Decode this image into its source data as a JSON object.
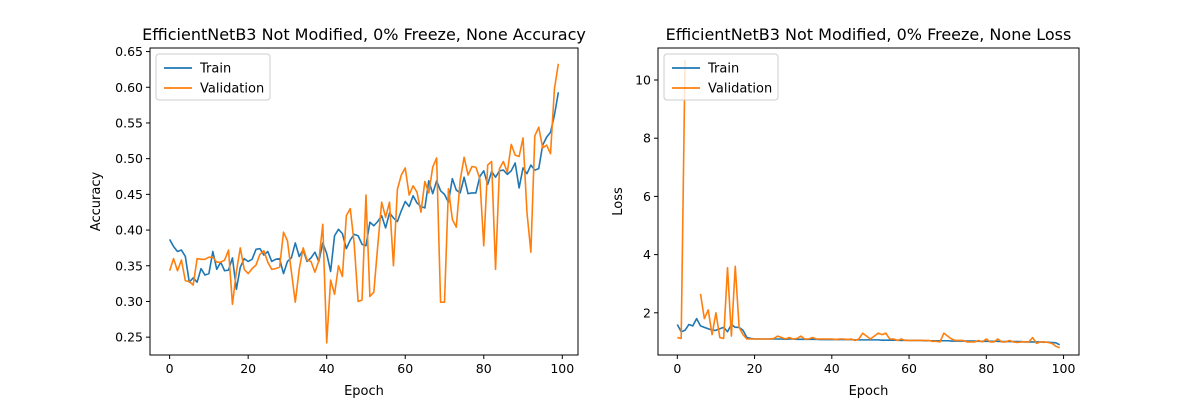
{
  "chart_data": [
    {
      "type": "line",
      "title": "EfficientNetB3 Not Modified, 0% Freeze, None Accuracy",
      "xlabel": "Epoch",
      "ylabel": "Accuracy",
      "xlim": [
        -5,
        104
      ],
      "ylim": [
        0.225,
        0.655
      ],
      "xticks": [
        0,
        20,
        40,
        60,
        80,
        100
      ],
      "yticks": [
        0.25,
        0.3,
        0.35,
        0.4,
        0.45,
        0.5,
        0.55,
        0.6,
        0.65
      ],
      "ytick_labels": [
        "0.25",
        "0.30",
        "0.35",
        "0.40",
        "0.45",
        "0.50",
        "0.55",
        "0.60",
        "0.65"
      ],
      "legend_position": "upper-left",
      "series": [
        {
          "name": "Train",
          "color": "#1f77b4",
          "values": [
            0.387,
            0.377,
            0.37,
            0.372,
            0.363,
            0.327,
            0.333,
            0.327,
            0.346,
            0.337,
            0.339,
            0.37,
            0.345,
            0.355,
            0.343,
            0.344,
            0.361,
            0.317,
            0.348,
            0.36,
            0.356,
            0.359,
            0.373,
            0.374,
            0.365,
            0.37,
            0.356,
            0.359,
            0.36,
            0.339,
            0.356,
            0.361,
            0.382,
            0.363,
            0.372,
            0.356,
            0.361,
            0.369,
            0.356,
            0.382,
            0.367,
            0.342,
            0.392,
            0.401,
            0.395,
            0.374,
            0.386,
            0.394,
            0.392,
            0.38,
            0.378,
            0.411,
            0.406,
            0.412,
            0.42,
            0.403,
            0.424,
            0.417,
            0.412,
            0.427,
            0.44,
            0.433,
            0.448,
            0.438,
            0.433,
            0.431,
            0.469,
            0.451,
            0.469,
            0.455,
            0.45,
            0.439,
            0.472,
            0.456,
            0.452,
            0.474,
            0.451,
            0.452,
            0.452,
            0.475,
            0.483,
            0.464,
            0.482,
            0.474,
            0.483,
            0.484,
            0.478,
            0.483,
            0.494,
            0.459,
            0.487,
            0.479,
            0.491,
            0.484,
            0.486,
            0.519,
            0.53,
            0.537,
            0.561,
            0.593
          ]
        },
        {
          "name": "Validation",
          "color": "#ff7f0e",
          "values": [
            0.343,
            0.36,
            0.343,
            0.358,
            0.329,
            0.328,
            0.323,
            0.36,
            0.359,
            0.359,
            0.362,
            0.362,
            0.355,
            0.355,
            0.358,
            0.372,
            0.296,
            0.342,
            0.375,
            0.345,
            0.339,
            0.346,
            0.351,
            0.366,
            0.371,
            0.355,
            0.345,
            0.346,
            0.348,
            0.397,
            0.385,
            0.342,
            0.299,
            0.345,
            0.375,
            0.358,
            0.356,
            0.341,
            0.357,
            0.408,
            0.242,
            0.33,
            0.31,
            0.35,
            0.335,
            0.42,
            0.43,
            0.381,
            0.3,
            0.302,
            0.449,
            0.307,
            0.313,
            0.378,
            0.439,
            0.418,
            0.439,
            0.35,
            0.457,
            0.477,
            0.487,
            0.449,
            0.462,
            0.453,
            0.425,
            0.468,
            0.452,
            0.488,
            0.501,
            0.299,
            0.299,
            0.458,
            0.415,
            0.404,
            0.47,
            0.502,
            0.477,
            0.489,
            0.488,
            0.472,
            0.378,
            0.491,
            0.496,
            0.345,
            0.486,
            0.496,
            0.481,
            0.52,
            0.505,
            0.503,
            0.529,
            0.425,
            0.369,
            0.532,
            0.544,
            0.515,
            0.519,
            0.507,
            0.598,
            0.633
          ]
        }
      ]
    },
    {
      "type": "line",
      "title": "EfficientNetB3 Not Modified, 0% Freeze, None Loss",
      "xlabel": "Epoch",
      "ylabel": "Loss",
      "xlim": [
        -5,
        104
      ],
      "ylim": [
        0.55,
        11.1
      ],
      "xticks": [
        0,
        20,
        40,
        60,
        80,
        100
      ],
      "yticks": [
        2,
        4,
        6,
        8,
        10
      ],
      "ytick_labels": [
        "2",
        "4",
        "6",
        "8",
        "10"
      ],
      "legend_position": "upper-left",
      "series": [
        {
          "name": "Train",
          "color": "#1f77b4",
          "values": [
            1.6,
            1.35,
            1.4,
            1.6,
            1.55,
            1.8,
            1.55,
            1.5,
            1.45,
            1.4,
            1.4,
            1.45,
            1.5,
            1.35,
            1.6,
            1.5,
            1.5,
            1.4,
            1.15,
            1.12,
            1.1,
            1.1,
            1.1,
            1.1,
            1.1,
            1.1,
            1.1,
            1.1,
            1.09,
            1.1,
            1.1,
            1.09,
            1.09,
            1.09,
            1.09,
            1.09,
            1.09,
            1.08,
            1.08,
            1.08,
            1.08,
            1.08,
            1.08,
            1.08,
            1.08,
            1.08,
            1.07,
            1.07,
            1.07,
            1.07,
            1.07,
            1.07,
            1.07,
            1.06,
            1.06,
            1.06,
            1.06,
            1.06,
            1.05,
            1.06,
            1.05,
            1.05,
            1.05,
            1.05,
            1.04,
            1.04,
            1.04,
            1.04,
            1.04,
            1.04,
            1.04,
            1.03,
            1.03,
            1.03,
            1.03,
            1.03,
            1.03,
            1.03,
            1.02,
            1.02,
            1.02,
            1.02,
            1.02,
            1.02,
            1.01,
            1.01,
            1.01,
            1.01,
            1.01,
            1.01,
            1.0,
            1.0,
            1.0,
            1.0,
            1.0,
            0.99,
            0.99,
            0.98,
            0.97,
            0.9
          ]
        },
        {
          "name": "Validation",
          "color": "#ff7f0e",
          "values": [
            1.15,
            1.12,
            10.7,
            null,
            8.9,
            null,
            2.65,
            1.8,
            2.1,
            1.25,
            2.0,
            1.15,
            1.12,
            3.55,
            1.2,
            3.6,
            1.5,
            1.25,
            1.1,
            1.1,
            1.1,
            1.1,
            1.1,
            1.1,
            1.1,
            1.12,
            1.2,
            1.15,
            1.1,
            1.15,
            1.1,
            1.12,
            1.2,
            1.1,
            1.1,
            1.15,
            1.1,
            1.1,
            1.1,
            1.1,
            1.1,
            1.08,
            1.1,
            1.1,
            1.08,
            1.1,
            1.05,
            1.1,
            1.3,
            1.2,
            1.1,
            1.2,
            1.3,
            1.25,
            1.3,
            1.1,
            1.1,
            1.05,
            1.1,
            1.05,
            1.05,
            1.05,
            1.05,
            1.05,
            1.05,
            1.05,
            1.02,
            1.02,
            1.0,
            1.3,
            1.2,
            1.1,
            1.05,
            1.05,
            1.05,
            1.0,
            1.0,
            1.0,
            1.05,
            1.0,
            1.1,
            1.0,
            1.0,
            1.1,
            1.0,
            1.0,
            1.05,
            1.0,
            0.98,
            1.0,
            1.0,
            1.0,
            1.15,
            0.95,
            1.0,
            1.0,
            0.98,
            0.95,
            0.85,
            0.8
          ]
        }
      ]
    }
  ]
}
